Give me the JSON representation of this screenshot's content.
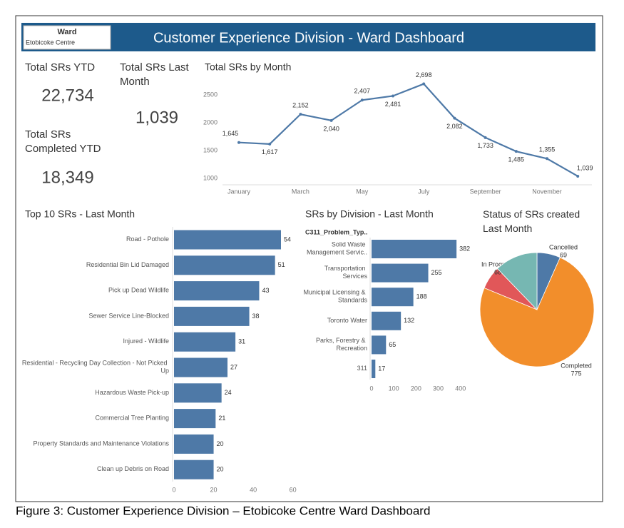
{
  "header": {
    "ward_label": "Ward",
    "ward_name": "Etobicoke Centre",
    "title": "Customer Experience Division - Ward Dashboard"
  },
  "kpis": [
    {
      "label": "Total SRs YTD",
      "value": "22,734"
    },
    {
      "label": "Total SRs Last Month",
      "value": "1,039"
    },
    {
      "label": "Total SRs Completed YTD",
      "value": "18,349"
    }
  ],
  "chart_data": [
    {
      "type": "line",
      "title": "Total SRs by Month",
      "categories": [
        "January",
        null,
        "March",
        null,
        "May",
        null,
        "July",
        null,
        "September",
        null,
        "November",
        null
      ],
      "values": [
        1645,
        1617,
        2152,
        2040,
        2407,
        2481,
        2698,
        2082,
        1733,
        1485,
        1355,
        1039
      ],
      "value_labels": [
        "1,645",
        "1,617",
        "2,152",
        "2,040",
        "2,407",
        "2,481",
        "2,698",
        "2,082",
        "1,733",
        "1,485",
        "1,355",
        "1,039"
      ],
      "color": "#4e79a7",
      "ylim": [
        900,
        2800
      ],
      "yticks": [
        1000,
        1500,
        2000,
        2500
      ],
      "grid": false
    },
    {
      "type": "hbar",
      "title": "Top 10 SRs - Last Month",
      "categories": [
        "Road - Pothole",
        "Residential Bin Lid Damaged",
        "Pick up Dead Wildlife",
        "Sewer Service Line-Blocked",
        "Injured - Wildlife",
        "Residential - Recycling Day Collection - Not Picked Up",
        "Hazardous Waste Pick-up",
        "Commercial Tree Planting",
        "Property Standards and Maintenance Violations",
        "Clean up Debris on Road"
      ],
      "values": [
        54,
        51,
        43,
        38,
        31,
        27,
        24,
        21,
        20,
        20
      ],
      "color": "#4e79a7",
      "xlim": [
        0,
        63
      ],
      "xticks": [
        0,
        20,
        40,
        60
      ],
      "grid": false
    },
    {
      "type": "hbar",
      "title": "SRs by Division - Last Month",
      "axis_header": "C311_Problem_Typ..",
      "categories": [
        "Solid Waste Management Servic..",
        "Transportation Services",
        "Municipal Licensing & Standards",
        "Toronto Water",
        "Parks, Forestry & Recreation",
        "311"
      ],
      "values": [
        382,
        255,
        188,
        132,
        65,
        17
      ],
      "color": "#4e79a7",
      "xlim": [
        0,
        420
      ],
      "xticks": [
        0,
        100,
        200,
        300,
        400
      ],
      "grid": false
    },
    {
      "type": "pie",
      "title": "Status of SRs created Last Month",
      "categories": [
        "Cancelled",
        "Completed",
        "In Progress",
        null
      ],
      "values": [
        69,
        775,
        68,
        127
      ],
      "colors": [
        "#4e79a7",
        "#f28e2b",
        "#e15759",
        "#76b7b2"
      ]
    }
  ],
  "caption": "Figure 3: Customer Experience Division – Etobicoke Centre Ward Dashboard"
}
